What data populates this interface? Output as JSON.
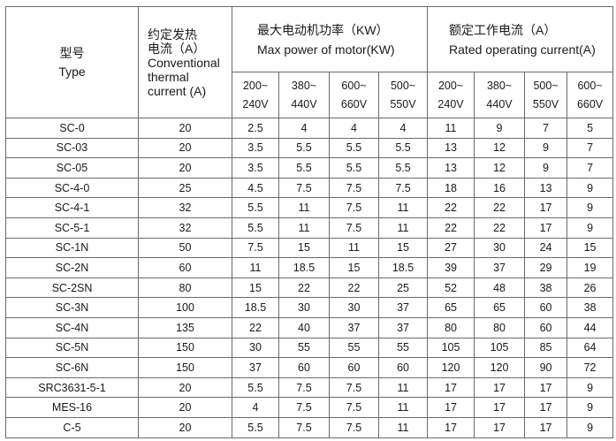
{
  "table": {
    "header": {
      "model_cn": "型号",
      "model_en": "Type",
      "thermal_cn": "约定发热",
      "thermal_cn2": "电流（A）",
      "thermal_en1": "Conventional",
      "thermal_en2": "thermal",
      "thermal_en3": "current (A)",
      "power_cn": "最大电动机功率（KW）",
      "power_en": "Max power of motor(KW)",
      "rated_cn": "额定工作电流（A）",
      "rated_en": "Rated operating current(A)",
      "power_voltages": [
        [
          "200~",
          "240V"
        ],
        [
          "380~",
          "440V"
        ],
        [
          "600~",
          "660V"
        ],
        [
          "500~",
          "550V"
        ]
      ],
      "rated_voltages": [
        [
          "200~",
          "240V"
        ],
        [
          "380~",
          "440V"
        ],
        [
          "500~",
          "550V"
        ],
        [
          "600~",
          "660V"
        ]
      ]
    },
    "rows": [
      [
        "SC-0",
        "20",
        "2.5",
        "4",
        "4",
        "4",
        "11",
        "9",
        "7",
        "5"
      ],
      [
        "SC-03",
        "20",
        "3.5",
        "5.5",
        "5.5",
        "5.5",
        "13",
        "12",
        "9",
        "7"
      ],
      [
        "SC-05",
        "20",
        "3.5",
        "5.5",
        "5.5",
        "5.5",
        "13",
        "12",
        "9",
        "7"
      ],
      [
        "SC-4-0",
        "25",
        "4.5",
        "7.5",
        "7.5",
        "7.5",
        "18",
        "16",
        "13",
        "9"
      ],
      [
        "SC-4-1",
        "32",
        "5.5",
        "11",
        "7.5",
        "11",
        "22",
        "22",
        "17",
        "9"
      ],
      [
        "SC-5-1",
        "32",
        "5.5",
        "11",
        "7.5",
        "11",
        "22",
        "22",
        "17",
        "9"
      ],
      [
        "SC-1N",
        "50",
        "7.5",
        "15",
        "11",
        "15",
        "27",
        "30",
        "24",
        "15"
      ],
      [
        "SC-2N",
        "60",
        "11",
        "18.5",
        "15",
        "18.5",
        "39",
        "37",
        "29",
        "19"
      ],
      [
        "SC-2SN",
        "80",
        "15",
        "22",
        "22",
        "25",
        "52",
        "48",
        "38",
        "26"
      ],
      [
        "SC-3N",
        "100",
        "18.5",
        "30",
        "30",
        "37",
        "65",
        "65",
        "60",
        "38"
      ],
      [
        "SC-4N",
        "135",
        "22",
        "40",
        "37",
        "37",
        "80",
        "80",
        "60",
        "44"
      ],
      [
        "SC-5N",
        "150",
        "30",
        "55",
        "55",
        "55",
        "105",
        "105",
        "85",
        "64"
      ],
      [
        "SC-6N",
        "150",
        "37",
        "60",
        "60",
        "60",
        "120",
        "120",
        "90",
        "72"
      ],
      [
        "SRC3631-5-1",
        "20",
        "5.5",
        "7.5",
        "7.5",
        "11",
        "17",
        "17",
        "17",
        "9"
      ],
      [
        "MES-16",
        "20",
        "4",
        "7.5",
        "7.5",
        "11",
        "17",
        "17",
        "17",
        "9"
      ],
      [
        "C-5",
        "20",
        "5.5",
        "7.5",
        "7.5",
        "11",
        "17",
        "17",
        "17",
        "9"
      ]
    ]
  }
}
